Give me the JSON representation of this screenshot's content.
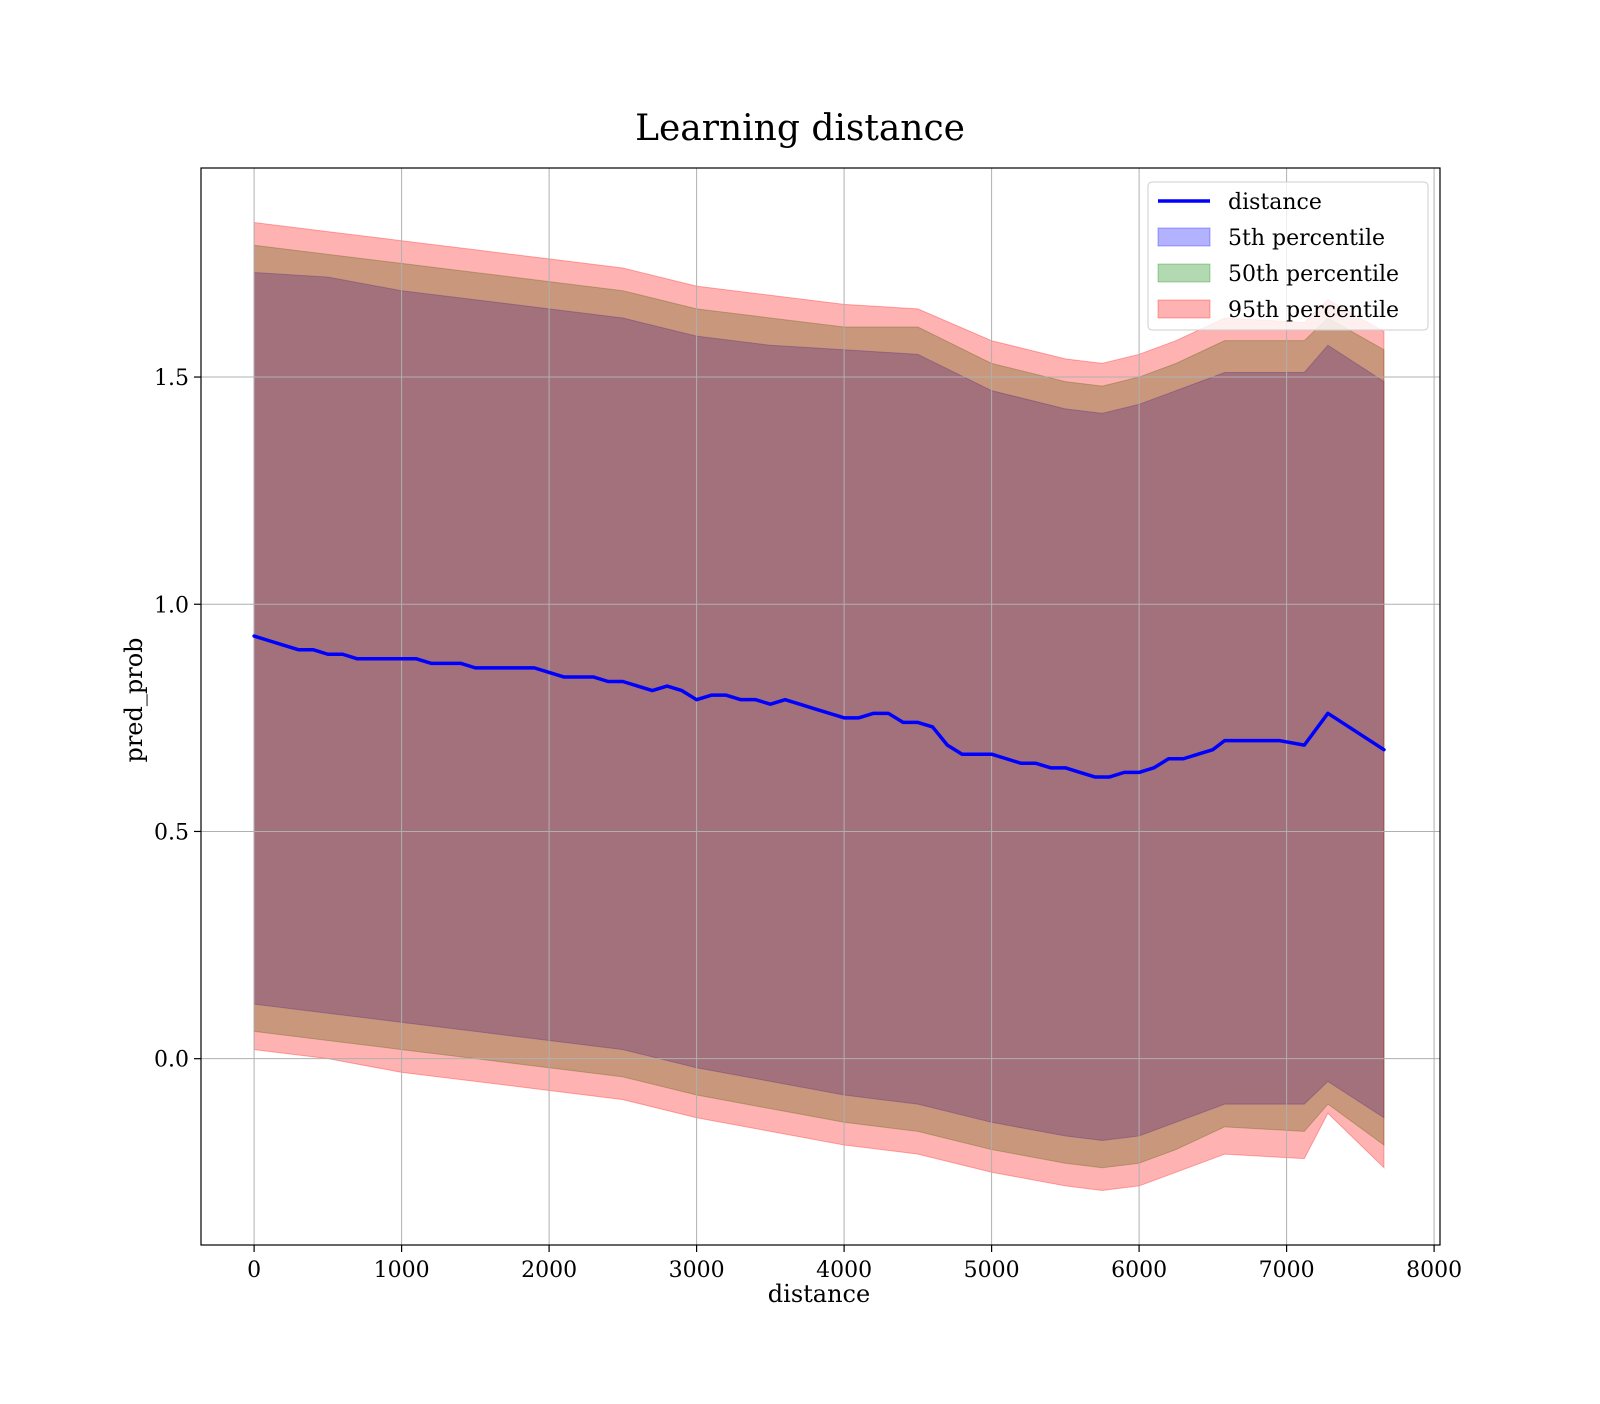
{
  "chart_data": {
    "type": "line",
    "title": "Learning distance",
    "xlabel": "distance",
    "ylabel": "pred_prob",
    "xlim": [
      -360,
      8040
    ],
    "ylim": [
      -0.41,
      1.96
    ],
    "x_ticks": [
      0,
      1000,
      2000,
      3000,
      4000,
      5000,
      6000,
      7000,
      8000
    ],
    "x_tick_labels": [
      "0",
      "1000",
      "2000",
      "3000",
      "4000",
      "5000",
      "6000",
      "7000",
      "8000"
    ],
    "y_ticks": [
      0.0,
      0.5,
      1.0,
      1.5
    ],
    "y_tick_labels": [
      "0.0",
      "0.5",
      "1.0",
      "1.5"
    ],
    "grid": true,
    "legend_position": "top-right",
    "series": [
      {
        "name": "distance",
        "kind": "line",
        "color": "#0000ff",
        "x": [
          0,
          100,
          200,
          300,
          400,
          500,
          600,
          700,
          800,
          900,
          1000,
          1100,
          1200,
          1300,
          1400,
          1500,
          1600,
          1700,
          1800,
          1900,
          2000,
          2100,
          2200,
          2300,
          2400,
          2500,
          2600,
          2700,
          2800,
          2900,
          3000,
          3100,
          3200,
          3300,
          3400,
          3500,
          3600,
          3700,
          3800,
          3900,
          4000,
          4100,
          4200,
          4300,
          4400,
          4500,
          4600,
          4700,
          4800,
          4900,
          5000,
          5100,
          5200,
          5300,
          5400,
          5500,
          5600,
          5700,
          5800,
          5900,
          6000,
          6100,
          6200,
          6300,
          6400,
          6500,
          6580,
          6750,
          6950,
          7120,
          7280,
          7660
        ],
        "y": [
          0.93,
          0.92,
          0.91,
          0.9,
          0.9,
          0.89,
          0.89,
          0.88,
          0.88,
          0.88,
          0.88,
          0.88,
          0.87,
          0.87,
          0.87,
          0.86,
          0.86,
          0.86,
          0.86,
          0.86,
          0.85,
          0.84,
          0.84,
          0.84,
          0.83,
          0.83,
          0.82,
          0.81,
          0.82,
          0.81,
          0.79,
          0.8,
          0.8,
          0.79,
          0.79,
          0.78,
          0.79,
          0.78,
          0.77,
          0.76,
          0.75,
          0.75,
          0.76,
          0.76,
          0.74,
          0.74,
          0.73,
          0.69,
          0.67,
          0.67,
          0.67,
          0.66,
          0.65,
          0.65,
          0.64,
          0.64,
          0.63,
          0.62,
          0.62,
          0.63,
          0.63,
          0.64,
          0.66,
          0.66,
          0.67,
          0.68,
          0.7,
          0.7,
          0.7,
          0.69,
          0.76,
          0.68
        ]
      },
      {
        "name": "5th percentile",
        "kind": "band",
        "color": "#0000ff",
        "alpha": 0.3,
        "x": [
          0,
          500,
          1000,
          1500,
          2000,
          2500,
          3000,
          3500,
          4000,
          4500,
          5000,
          5500,
          5750,
          6000,
          6250,
          6580,
          7120,
          7280,
          7660
        ],
        "lower": [
          0.12,
          0.1,
          0.08,
          0.06,
          0.04,
          0.02,
          -0.02,
          -0.05,
          -0.08,
          -0.1,
          -0.14,
          -0.17,
          -0.18,
          -0.17,
          -0.14,
          -0.1,
          -0.1,
          -0.05,
          -0.13
        ],
        "upper": [
          1.73,
          1.72,
          1.69,
          1.67,
          1.65,
          1.63,
          1.59,
          1.57,
          1.56,
          1.55,
          1.47,
          1.43,
          1.42,
          1.44,
          1.47,
          1.51,
          1.51,
          1.57,
          1.49
        ]
      },
      {
        "name": "50th percentile",
        "kind": "band",
        "color": "#008000",
        "alpha": 0.3,
        "x": [
          0,
          500,
          1000,
          1500,
          2000,
          2500,
          3000,
          3500,
          4000,
          4500,
          5000,
          5500,
          5750,
          6000,
          6250,
          6580,
          7120,
          7280,
          7660
        ],
        "lower": [
          0.06,
          0.04,
          0.02,
          0.0,
          -0.02,
          -0.04,
          -0.08,
          -0.11,
          -0.14,
          -0.16,
          -0.2,
          -0.23,
          -0.24,
          -0.23,
          -0.2,
          -0.15,
          -0.16,
          -0.1,
          -0.19
        ],
        "upper": [
          1.79,
          1.77,
          1.75,
          1.73,
          1.71,
          1.69,
          1.65,
          1.63,
          1.61,
          1.61,
          1.53,
          1.49,
          1.48,
          1.5,
          1.53,
          1.58,
          1.58,
          1.63,
          1.56
        ]
      },
      {
        "name": "95th percentile",
        "kind": "band",
        "color": "#ff0000",
        "alpha": 0.3,
        "x": [
          0,
          500,
          1000,
          1500,
          2000,
          2500,
          3000,
          3500,
          4000,
          4500,
          5000,
          5500,
          5750,
          6000,
          6250,
          6580,
          7120,
          7280,
          7660
        ],
        "lower": [
          0.02,
          0.0,
          -0.03,
          -0.05,
          -0.07,
          -0.09,
          -0.13,
          -0.16,
          -0.19,
          -0.21,
          -0.25,
          -0.28,
          -0.29,
          -0.28,
          -0.25,
          -0.21,
          -0.22,
          -0.12,
          -0.24
        ],
        "upper": [
          1.84,
          1.82,
          1.8,
          1.78,
          1.76,
          1.74,
          1.7,
          1.68,
          1.66,
          1.65,
          1.58,
          1.54,
          1.53,
          1.55,
          1.58,
          1.63,
          1.62,
          1.67,
          1.6
        ]
      }
    ]
  }
}
